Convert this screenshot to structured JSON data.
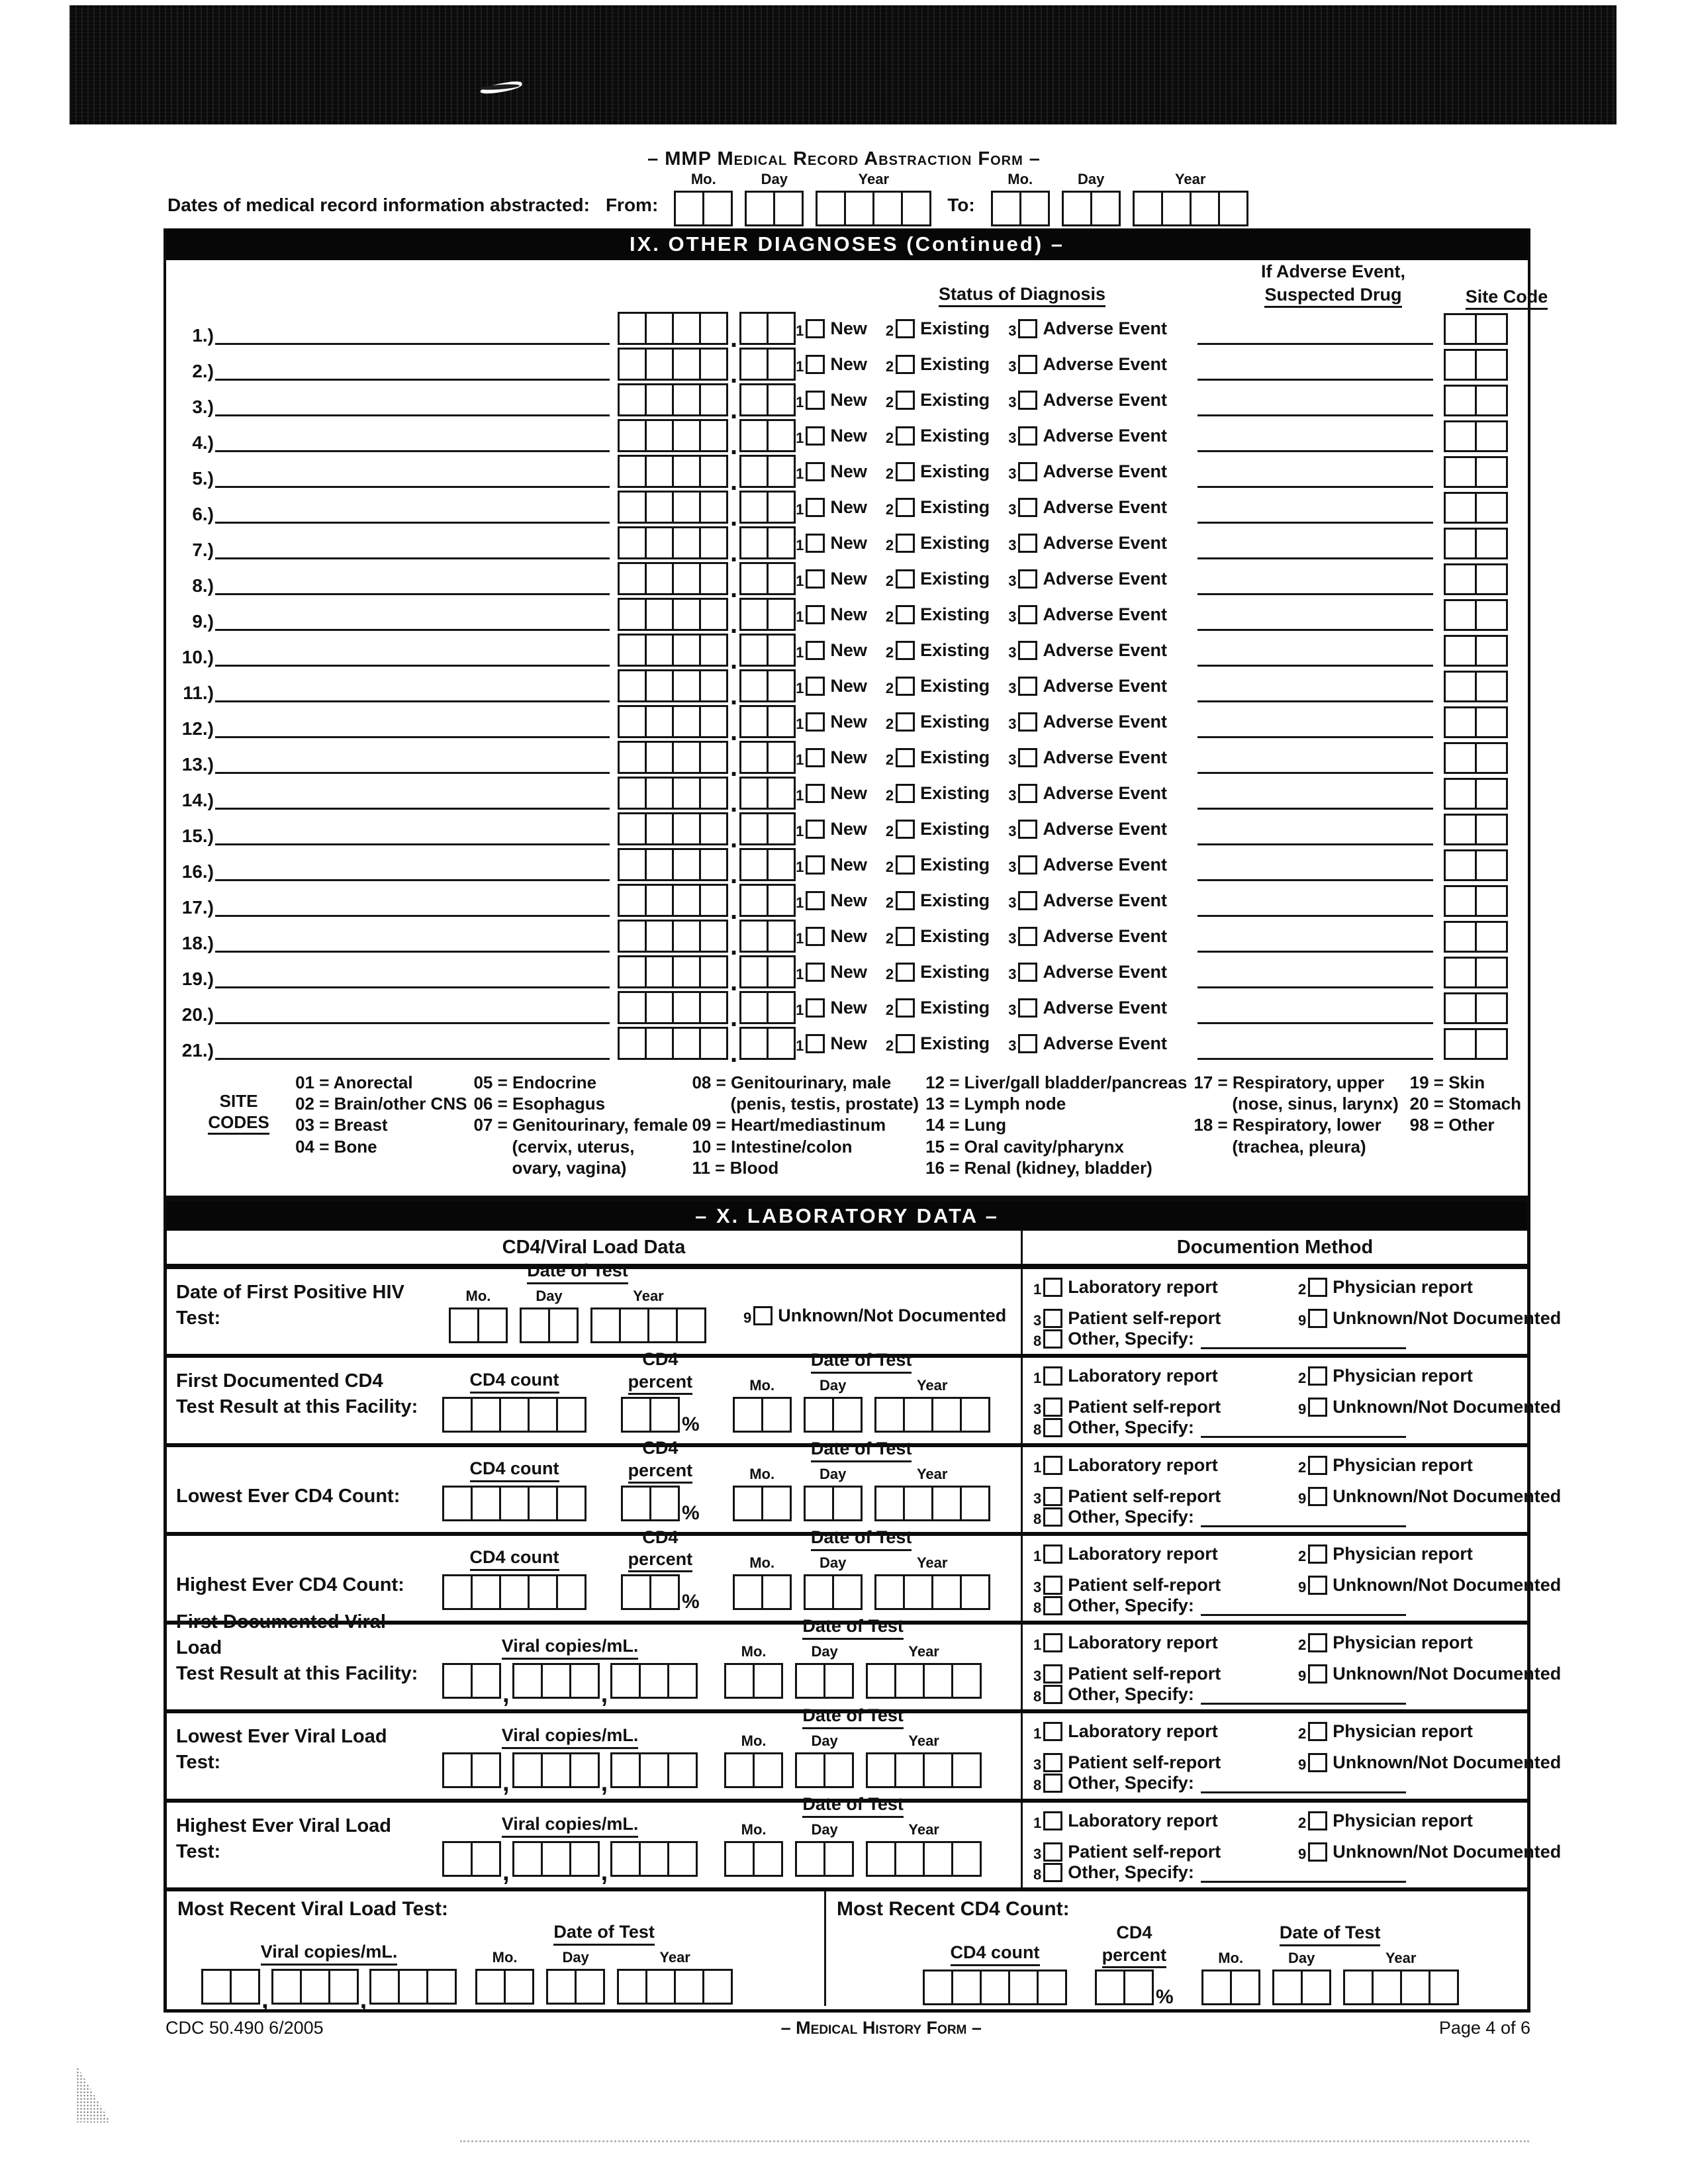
{
  "header": {
    "form_title": "– MMP Medical Record Abstraction Form –",
    "dates_label": "Dates of medical record information abstracted:",
    "from_label": "From:",
    "to_label": "To:",
    "mo": "Mo.",
    "day": "Day",
    "year": "Year"
  },
  "section9": {
    "bar_title": "IX. OTHER DIAGNOSES (Continued) –",
    "status_header": "Status of Diagnosis",
    "adverse_header_line1": "If Adverse Event,",
    "adverse_header_line2": "Suspected Drug",
    "site_header": "Site Code",
    "status_options": [
      {
        "num": "1",
        "label": "New"
      },
      {
        "num": "2",
        "label": "Existing"
      },
      {
        "num": "3",
        "label": "Adverse Event"
      }
    ],
    "rows": [
      "1.)",
      "2.)",
      "3.)",
      "4.)",
      "5.)",
      "6.)",
      "7.)",
      "8.)",
      "9.)",
      "10.)",
      "11.)",
      "12.)",
      "13.)",
      "14.)",
      "15.)",
      "16.)",
      "17.)",
      "18.)",
      "19.)",
      "20.)",
      "21.)"
    ]
  },
  "site_codes": {
    "label_line1": "SITE",
    "label_line2": "CODES",
    "columns": [
      [
        "01 = Anorectal",
        "02 = Brain/other CNS",
        "03 = Breast",
        "04 = Bone"
      ],
      [
        "05 = Endocrine",
        "06 = Esophagus",
        "07 = Genitourinary, female",
        "(cervix, uterus,",
        "ovary, vagina)"
      ],
      [
        "08 = Genitourinary, male",
        "(penis, testis, prostate)",
        "09 = Heart/mediastinum",
        "10 = Intestine/colon",
        "11 = Blood"
      ],
      [
        "12 = Liver/gall bladder/pancreas",
        "13 = Lymph node",
        "14 = Lung",
        "15 = Oral cavity/pharynx",
        "16 = Renal (kidney, bladder)"
      ],
      [
        "17 = Respiratory, upper",
        "(nose, sinus, larynx)",
        "18 = Respiratory, lower",
        "(trachea, pleura)"
      ],
      [
        "19 = Skin",
        "20 = Stomach",
        "98 = Other"
      ]
    ]
  },
  "section10": {
    "bar_title": "– X. LABORATORY DATA –",
    "left_header": "CD4/Viral Load Data",
    "right_header": "Documention Method",
    "date_of_test": "Date of Test",
    "cd4_count": "CD4 count",
    "cd4_percent_line1": "CD4",
    "cd4_percent_line2": "percent",
    "percent": "%",
    "viral_copies": "Viral copies/mL.",
    "hiv_label": "Date of First Positive HIV Test:",
    "unknown_num": "9",
    "unknown_label": "Unknown/Not Documented",
    "first_cd4_line1": "First Documented CD4",
    "first_cd4_line2": "Test Result at this Facility:",
    "lowest_cd4": "Lowest Ever CD4 Count:",
    "highest_cd4": "Highest Ever CD4 Count:",
    "first_vl_line1": "First Documented Viral Load",
    "first_vl_line2": "Test Result at this Facility:",
    "lowest_vl": "Lowest Ever Viral Load Test:",
    "highest_vl": "Highest Ever Viral Load Test:",
    "recent_vl": "Most Recent Viral Load Test:",
    "recent_cd4": "Most Recent CD4 Count:",
    "doc_options": [
      {
        "num": "1",
        "label": "Laboratory report"
      },
      {
        "num": "2",
        "label": "Physician report"
      },
      {
        "num": "3",
        "label": "Patient self-report"
      },
      {
        "num": "9",
        "label": "Unknown/Not Documented"
      },
      {
        "num": "8",
        "label": "Other, Specify:"
      }
    ]
  },
  "footer": {
    "left": "CDC 50.490  6/2005",
    "center": "– Medical History Form –",
    "right": "Page 4 of 6"
  }
}
